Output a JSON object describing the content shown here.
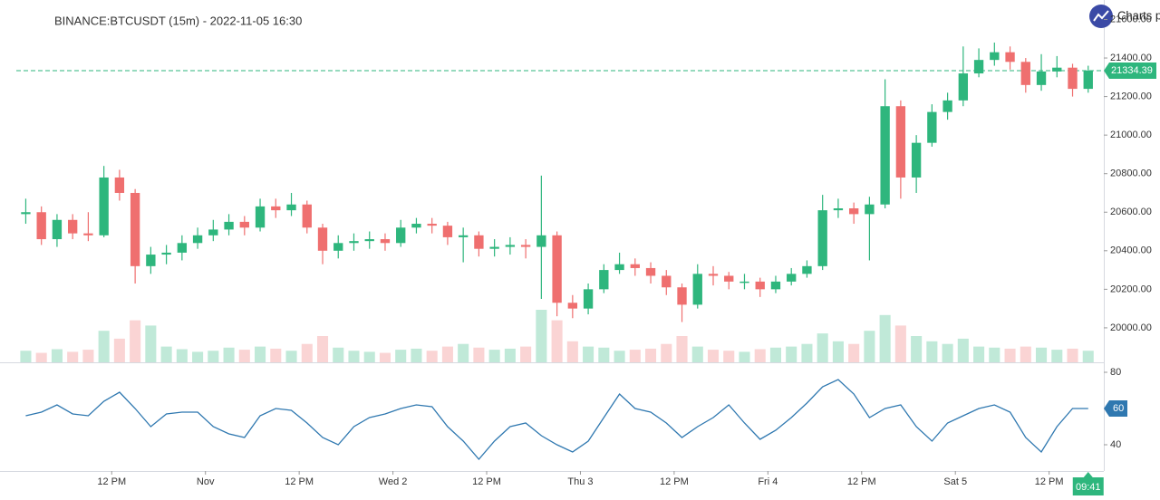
{
  "chart_data": {
    "type": "candlestick",
    "title": "BINANCE:BTCUSDT (15m) - 2022-11-05 16:30",
    "logo_text": "Charts p",
    "countdown": "09:41",
    "up_color": "#2eb67d",
    "down_color": "#ef6f6f",
    "last_line_color": "#2eb67d",
    "xlim": [
      -2.3,
      139
    ],
    "xticks": [
      {
        "value": 12,
        "label": "12 PM"
      },
      {
        "value": 24,
        "label": "Nov"
      },
      {
        "value": 36,
        "label": "12 PM"
      },
      {
        "value": 48,
        "label": "Wed 2"
      },
      {
        "value": 60,
        "label": "12 PM"
      },
      {
        "value": 72,
        "label": "Thu 3"
      },
      {
        "value": 84,
        "label": "12 PM"
      },
      {
        "value": 96,
        "label": "Fri 4"
      },
      {
        "value": 108,
        "label": "12 PM"
      },
      {
        "value": 120,
        "label": "Sat 5"
      },
      {
        "value": 132,
        "label": "12 PM"
      }
    ],
    "ylim": [
      19821,
      21701
    ],
    "yticks": [
      {
        "value": 20000,
        "label": "20000.00"
      },
      {
        "value": 20200,
        "label": "20200.00"
      },
      {
        "value": 20400,
        "label": "20400.00"
      },
      {
        "value": 20600,
        "label": "20600.00"
      },
      {
        "value": 20800,
        "label": "20800.00"
      },
      {
        "value": 21000,
        "label": "21000.00"
      },
      {
        "value": 21200,
        "label": "21200.00"
      },
      {
        "value": 21400,
        "label": "21400.00"
      },
      {
        "value": 21600,
        "label": "21600.00"
      }
    ],
    "open": [
      20590,
      20600,
      20460,
      20560,
      20490,
      20480,
      20780,
      20700,
      20320,
      20380,
      20390,
      20440,
      20480,
      20510,
      20550,
      20520,
      20630,
      20610,
      20640,
      20520,
      20400,
      20440,
      20450,
      20460,
      20440,
      20520,
      20540,
      20530,
      20470,
      20480,
      20410,
      20420,
      20430,
      20420,
      20480,
      20130,
      20100,
      20200,
      20300,
      20330,
      20310,
      20270,
      20210,
      20120,
      20280,
      20270,
      20240,
      20240,
      20200,
      20240,
      20280,
      20320,
      20610,
      20620,
      20590,
      20640,
      21150,
      20780,
      20960,
      21120,
      21180,
      21320,
      21390,
      21430,
      21380,
      21260,
      21330,
      21350,
      21240
    ],
    "high": [
      20670,
      20630,
      20590,
      20590,
      20600,
      20840,
      20820,
      20720,
      20420,
      20430,
      20480,
      20520,
      20560,
      20590,
      20580,
      20670,
      20670,
      20700,
      20660,
      20540,
      20480,
      20490,
      20500,
      20490,
      20560,
      20570,
      20570,
      20550,
      20520,
      20500,
      20460,
      20470,
      20460,
      20790,
      20500,
      20170,
      20230,
      20330,
      20390,
      20360,
      20340,
      20300,
      20230,
      20330,
      20320,
      20290,
      20280,
      20260,
      20270,
      20310,
      20350,
      20690,
      20670,
      20650,
      20680,
      21290,
      21180,
      21000,
      21160,
      21220,
      21460,
      21450,
      21480,
      21460,
      21400,
      21420,
      21410,
      21370,
      21360
    ],
    "low": [
      20540,
      20430,
      20420,
      20460,
      20450,
      20470,
      20660,
      20230,
      20280,
      20330,
      20350,
      20410,
      20450,
      20480,
      20480,
      20500,
      20570,
      20580,
      20490,
      20330,
      20360,
      20400,
      20410,
      20400,
      20420,
      20490,
      20490,
      20430,
      20340,
      20370,
      20370,
      20380,
      20360,
      20150,
      20060,
      20050,
      20070,
      20180,
      20280,
      20270,
      20230,
      20170,
      20030,
      20100,
      20220,
      20200,
      20200,
      20160,
      20180,
      20220,
      20260,
      20300,
      20570,
      20540,
      20350,
      20620,
      20670,
      20700,
      20940,
      21080,
      21150,
      21300,
      21360,
      21340,
      21220,
      21230,
      21300,
      21200,
      21220
    ],
    "close": [
      20600,
      20460,
      20560,
      20490,
      20480,
      20780,
      20700,
      20320,
      20380,
      20390,
      20440,
      20480,
      20510,
      20550,
      20520,
      20630,
      20610,
      20640,
      20520,
      20400,
      20440,
      20450,
      20460,
      20440,
      20520,
      20540,
      20530,
      20470,
      20480,
      20410,
      20420,
      20430,
      20420,
      20480,
      20130,
      20100,
      20200,
      20300,
      20330,
      20310,
      20270,
      20210,
      20120,
      20280,
      20270,
      20240,
      20240,
      20200,
      20240,
      20280,
      20320,
      20610,
      20620,
      20590,
      20640,
      21150,
      20780,
      20960,
      21120,
      21180,
      21320,
      21390,
      21430,
      21380,
      21260,
      21330,
      21350,
      21240,
      21334.39
    ],
    "volume": [
      22,
      18,
      25,
      20,
      24,
      60,
      45,
      80,
      70,
      30,
      25,
      20,
      22,
      28,
      24,
      30,
      26,
      22,
      35,
      50,
      28,
      22,
      20,
      18,
      24,
      26,
      22,
      30,
      35,
      28,
      24,
      26,
      30,
      100,
      80,
      40,
      30,
      28,
      22,
      24,
      26,
      35,
      50,
      30,
      24,
      22,
      20,
      25,
      28,
      30,
      35,
      55,
      40,
      35,
      60,
      90,
      70,
      50,
      40,
      35,
      45,
      30,
      28,
      26,
      30,
      28,
      24,
      26,
      22
    ],
    "rsi": {
      "color": "#2f78b0",
      "ylim": [
        25.5,
        85.5
      ],
      "yticks": [
        40,
        80
      ],
      "values": [
        56,
        58,
        62,
        57,
        56,
        64,
        69,
        60,
        50,
        57,
        58,
        58,
        50,
        46,
        44,
        56,
        60,
        59,
        52,
        44,
        40,
        50,
        55,
        57,
        60,
        62,
        61,
        50,
        42,
        32,
        42,
        50,
        52,
        45,
        40,
        36,
        42,
        55,
        68,
        60,
        58,
        52,
        44,
        50,
        55,
        62,
        52,
        43,
        48,
        55,
        63,
        72,
        76,
        68,
        55,
        60,
        62,
        50,
        42,
        52,
        56,
        60,
        62,
        58,
        44,
        36,
        50,
        60,
        60
      ]
    }
  }
}
